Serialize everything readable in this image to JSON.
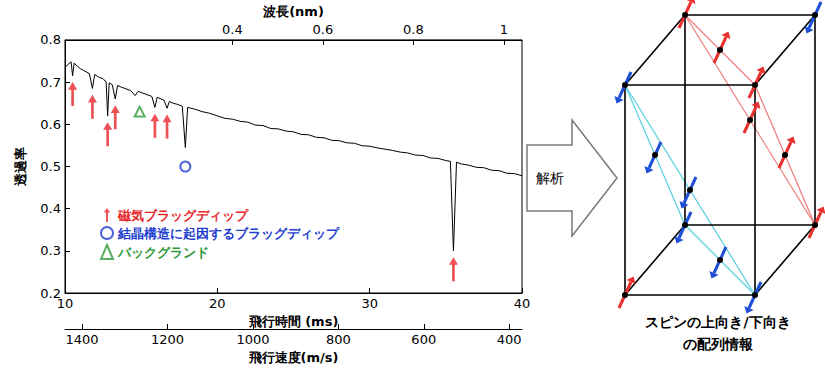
{
  "chart_data": {
    "type": "line",
    "xlabel": "飛行時間 (ms)",
    "ylabel": "透過率",
    "xlim": [
      10,
      40
    ],
    "xticks": [
      10,
      20,
      30,
      40
    ],
    "ylim": [
      0.2,
      0.8
    ],
    "yticks": [
      0.2,
      0.3,
      0.4,
      0.5,
      0.6,
      0.7,
      0.8
    ],
    "top_axis": {
      "label": "波長(nm)",
      "lim": [
        0.03,
        1.04
      ],
      "ticks": [
        0.4,
        0.6,
        0.8,
        1
      ]
    },
    "bottom_axis2": {
      "label": "飛行速度(m/s)",
      "lim": [
        1440,
        370
      ],
      "ticks": [
        1400,
        1200,
        1000,
        800,
        600,
        400
      ]
    },
    "grid": false,
    "legend": "lower left",
    "color": "#000000",
    "x": [
      10,
      10.2,
      10.4,
      10.5,
      10.6,
      10.8,
      11,
      11.2,
      11.4,
      11.6,
      11.8,
      11.95,
      12.2,
      12.5,
      12.7,
      12.8,
      12.9,
      13.1,
      13.3,
      13.45,
      13.7,
      14,
      14.3,
      14.6,
      14.8,
      15.1,
      15.4,
      15.7,
      15.9,
      16.05,
      16.3,
      16.5,
      16.7,
      16.85,
      17.1,
      17.4,
      17.7,
      17.9,
      18.05,
      18.5,
      19,
      19.5,
      20,
      20.5,
      21,
      21.5,
      22,
      22.5,
      23,
      23.5,
      24,
      24.5,
      25,
      25.5,
      26,
      26.5,
      27,
      27.5,
      28,
      28.5,
      29,
      29.5,
      30,
      30.5,
      31,
      31.5,
      32,
      32.5,
      33,
      33.5,
      34,
      34.5,
      35,
      35.3,
      35.5,
      35.7,
      36,
      36.5,
      37,
      37.5,
      38,
      38.5,
      39,
      39.5,
      40
    ],
    "values": [
      0.735,
      0.742,
      0.748,
      0.715,
      0.745,
      0.738,
      0.732,
      0.728,
      0.724,
      0.72,
      0.685,
      0.718,
      0.712,
      0.708,
      0.7,
      0.62,
      0.698,
      0.694,
      0.66,
      0.692,
      0.688,
      0.684,
      0.68,
      0.668,
      0.678,
      0.674,
      0.67,
      0.666,
      0.64,
      0.664,
      0.66,
      0.657,
      0.638,
      0.654,
      0.65,
      0.647,
      0.643,
      0.545,
      0.64,
      0.636,
      0.63,
      0.626,
      0.62,
      0.614,
      0.612,
      0.607,
      0.605,
      0.598,
      0.597,
      0.59,
      0.589,
      0.584,
      0.582,
      0.576,
      0.575,
      0.569,
      0.568,
      0.562,
      0.561,
      0.556,
      0.555,
      0.549,
      0.548,
      0.544,
      0.541,
      0.538,
      0.534,
      0.532,
      0.527,
      0.526,
      0.52,
      0.519,
      0.514,
      0.512,
      0.3,
      0.51,
      0.506,
      0.503,
      0.498,
      0.497,
      0.491,
      0.49,
      0.484,
      0.483,
      0.478
    ],
    "series": [
      {
        "name": "磁気ブラッグディップ",
        "type": "scatter",
        "marker": "arrow",
        "color": "#e8262a",
        "x": [
          10.5,
          11.8,
          12.8,
          13.3,
          15.9,
          16.7,
          35.5
        ],
        "values": [
          0.7,
          0.67,
          0.605,
          0.645,
          0.625,
          0.623,
          0.285
        ]
      },
      {
        "name": "結晶構造に起因するブラッグディップ",
        "type": "scatter",
        "marker": "open_circle",
        "color": "#1f3fd0",
        "x": [
          17.9
        ],
        "values": [
          0.5
        ]
      },
      {
        "name": "バックグランド",
        "type": "scatter",
        "marker": "open_triangle",
        "color": "#2e9a3a",
        "x": [
          14.9
        ],
        "values": [
          0.63
        ]
      }
    ]
  },
  "diagram": {
    "arrow_label": "解析",
    "caption": [
      "スピンの上向き/下向き",
      "の配列情報"
    ]
  }
}
